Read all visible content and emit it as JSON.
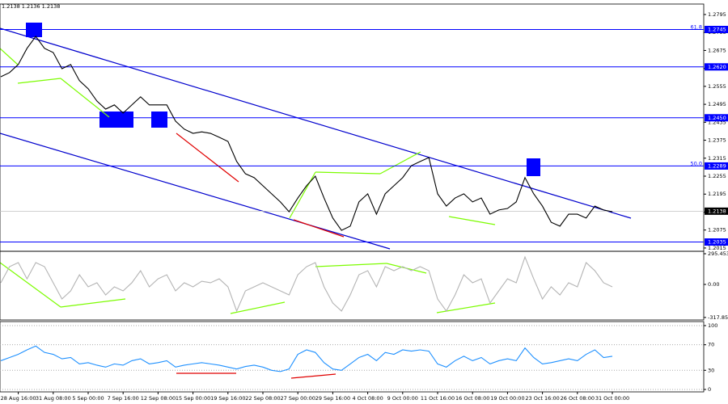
{
  "chart_data": [
    {
      "type": "line",
      "title": "1.2138 1.2136 1.2138",
      "color": "#000000",
      "level_color": "#0000ff",
      "values": [
        1.2587,
        1.2601,
        1.2628,
        1.2682,
        1.2722,
        1.2682,
        1.2668,
        1.2614,
        1.2628,
        1.2574,
        1.2547,
        1.2506,
        1.2479,
        1.2493,
        1.2466,
        1.2493,
        1.252,
        1.2493,
        1.2493,
        1.2493,
        1.2439,
        1.2412,
        1.2398,
        1.2403,
        1.2398,
        1.2385,
        1.2371,
        1.2304,
        1.2263,
        1.225,
        1.2223,
        1.2196,
        1.2169,
        1.2136,
        1.2182,
        1.2223,
        1.2255,
        1.2182,
        1.2115,
        1.2074,
        1.2088,
        1.2169,
        1.2196,
        1.2128,
        1.2196,
        1.2223,
        1.225,
        1.229,
        1.2304,
        1.2317,
        1.2196,
        1.2155,
        1.2182,
        1.2196,
        1.2169,
        1.2182,
        1.2128,
        1.2142,
        1.2147,
        1.2169,
        1.225,
        1.2196,
        1.2155,
        1.2101,
        1.2088,
        1.2128,
        1.2128,
        1.2115,
        1.2155,
        1.2142,
        1.2136
      ],
      "ylim": [
        1.2004,
        1.283
      ],
      "yticks": [
        1.2795,
        1.2735,
        1.2675,
        1.2615,
        1.2555,
        1.2495,
        1.2435,
        1.2375,
        1.2315,
        1.2255,
        1.2195,
        1.2135,
        1.2075,
        1.2015
      ],
      "levels": [
        {
          "value": 1.2745,
          "note": "61.8"
        },
        {
          "value": 1.262,
          "label": "1.2620"
        },
        {
          "value": 1.245,
          "label": "1.2450"
        },
        {
          "value": 1.2289,
          "note": "50.0"
        },
        1.2035
      ],
      "last": 1.2138
    },
    {
      "type": "line",
      "color": "#b4b4b4",
      "values": [
        16,
        171,
        210,
        54,
        210,
        171,
        16,
        -140,
        -62,
        93,
        -23,
        16,
        -101,
        -23,
        -62,
        16,
        132,
        -23,
        54,
        93,
        -62,
        16,
        -23,
        31,
        16,
        54,
        -23,
        -256,
        -62,
        -23,
        16,
        -23,
        -62,
        -101,
        93,
        171,
        210,
        -23,
        -179,
        -256,
        -101,
        93,
        132,
        -23,
        171,
        132,
        171,
        132,
        171,
        132,
        -140,
        -256,
        -101,
        93,
        16,
        54,
        -179,
        -62,
        54,
        16,
        264,
        54,
        -140,
        -23,
        -101,
        16,
        -23,
        210,
        132,
        16,
        -23
      ],
      "ylim": [
        -342,
        319
      ],
      "yticks": [
        295.4534,
        {
          "value": 0,
          "label": "0.00"
        },
        -317.854
      ]
    },
    {
      "type": "line",
      "color": "#1e90ff",
      "grid": true,
      "values": [
        45,
        50,
        55,
        62,
        68,
        58,
        55,
        48,
        50,
        40,
        42,
        38,
        35,
        40,
        38,
        45,
        48,
        40,
        42,
        45,
        35,
        38,
        40,
        42,
        40,
        38,
        35,
        32,
        36,
        38,
        35,
        30,
        28,
        32,
        55,
        62,
        58,
        42,
        32,
        30,
        40,
        50,
        55,
        45,
        58,
        55,
        62,
        60,
        62,
        60,
        40,
        35,
        45,
        52,
        45,
        50,
        40,
        45,
        48,
        45,
        65,
        50,
        40,
        42,
        45,
        48,
        45,
        55,
        62,
        50,
        52
      ],
      "ylim": [
        -3.8,
        106.3
      ],
      "yticks": [
        100,
        70,
        30,
        0
      ],
      "categories": [
        null,
        null,
        "28 Aug 16:00",
        null,
        null,
        null,
        "31 Aug 08:00",
        null,
        null,
        null,
        "5 Sep 00:00",
        null,
        null,
        null,
        "7 Sep 16:00",
        null,
        null,
        null,
        "12 Sep 08:00",
        null,
        null,
        null,
        "15 Sep 00:00",
        null,
        null,
        null,
        "19 Sep 16:00",
        null,
        null,
        null,
        "22 Sep 08:00",
        null,
        null,
        null,
        "27 Sep 00:00",
        null,
        null,
        null,
        "29 Sep 16:00",
        null,
        null,
        null,
        "4 Oct 08:00",
        null,
        null,
        null,
        "9 Oct 00:00",
        null,
        null,
        null,
        "11 Oct 16:00",
        null,
        null,
        null,
        "16 Oct 08:00",
        null,
        null,
        null,
        "19 Oct 00:00",
        null,
        null,
        null,
        "23 Oct 16:00",
        null,
        null,
        null,
        "26 Oct 08:00",
        null,
        null,
        null,
        "31 Oct 00:00"
      ]
    }
  ]
}
